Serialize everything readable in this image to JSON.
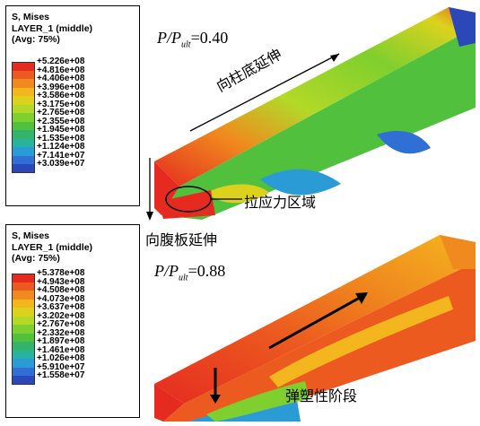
{
  "colors": {
    "scale": [
      "#e52b20",
      "#ec5a1f",
      "#f08a1e",
      "#f4b61e",
      "#dcd21e",
      "#b2d928",
      "#7fcf2e",
      "#50c03d",
      "#33b46b",
      "#28b3a1",
      "#2a9bd5",
      "#2f6fd6",
      "#2c47b7"
    ]
  },
  "legend_top": {
    "title": [
      "S, Mises",
      "LAYER_1 (middle)",
      "(Avg: 75%)"
    ],
    "values": [
      "+5.226e+08",
      "+4.816e+08",
      "+4.406e+08",
      "+3.996e+08",
      "+3.586e+08",
      "+3.175e+08",
      "+2.765e+08",
      "+2.355e+08",
      "+1.945e+08",
      "+1.535e+08",
      "+1.124e+08",
      "+7.141e+07",
      "+3.039e+07"
    ]
  },
  "legend_bottom": {
    "title": [
      "S, Mises",
      "LAYER_1 (middle)",
      "(Avg: 75%)"
    ],
    "values": [
      "+5.378e+08",
      "+4.943e+08",
      "+4.508e+08",
      "+4.073e+08",
      "+3.637e+08",
      "+3.202e+08",
      "+2.767e+08",
      "+2.332e+08",
      "+1.897e+08",
      "+1.461e+08",
      "+1.026e+08",
      "+5.910e+07",
      "+1.558e+07"
    ]
  },
  "ratio_top": {
    "p": "P/P",
    "sub": "ult",
    "value": "=0.40"
  },
  "ratio_bottom": {
    "p": "P/P",
    "sub": "ult",
    "value": "=0.88"
  },
  "labels": {
    "column_base": "向柱底延伸",
    "tension_region": "拉应力区域",
    "web": "向腹板延伸",
    "elastoplastic": "弹塑性阶段"
  }
}
